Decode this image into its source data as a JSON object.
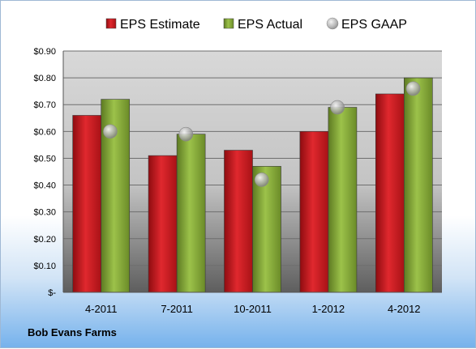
{
  "company": "Bob Evans Farms",
  "chart_data": {
    "type": "bar",
    "categories": [
      "4-2011",
      "7-2011",
      "10-2011",
      "1-2012",
      "4-2012"
    ],
    "series": [
      {
        "name": "EPS Estimate",
        "kind": "bar",
        "color": "#c0141a",
        "values": [
          0.66,
          0.51,
          0.53,
          0.6,
          0.74
        ]
      },
      {
        "name": "EPS Actual",
        "kind": "bar",
        "color": "#7ea132",
        "values": [
          0.72,
          0.59,
          0.47,
          0.69,
          0.8
        ]
      },
      {
        "name": "EPS GAAP",
        "kind": "marker",
        "color": "#b8b8b8",
        "values": [
          0.6,
          0.59,
          0.42,
          0.69,
          0.76
        ]
      }
    ],
    "y_ticks": [
      "$-",
      "$0.10",
      "$0.20",
      "$0.30",
      "$0.40",
      "$0.50",
      "$0.60",
      "$0.70",
      "$0.80",
      "$0.90"
    ],
    "ylim": [
      0,
      0.9
    ],
    "grid": true,
    "legend_position": "top"
  }
}
